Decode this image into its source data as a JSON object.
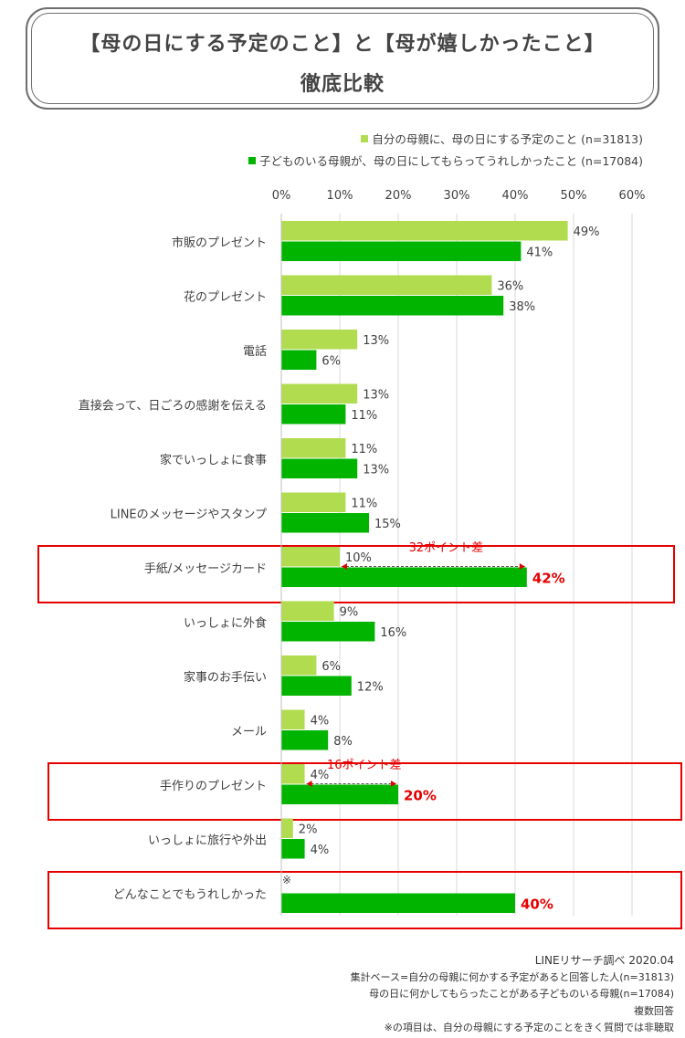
{
  "title": {
    "line1": "【母の日にする予定のこと】と【母が嬉しかったこと】",
    "line2": "徹底比較"
  },
  "colors": {
    "series1": "#b2dc50",
    "series2": "#00b400",
    "highlight": "#e60000"
  },
  "chart_data": {
    "type": "bar",
    "orientation": "horizontal",
    "categories": [
      "市販のプレゼント",
      "花のプレゼント",
      "電話",
      "直接会って、日ごろの感謝を伝える",
      "家でいっしょに食事",
      "LINEのメッセージやスタンプ",
      "手紙/メッセージカード",
      "いっしょに外食",
      "家事のお手伝い",
      "メール",
      "手作りのプレゼント",
      "いっしょに旅行や外出",
      "どんなことでもうれしかった"
    ],
    "series": [
      {
        "name": "自分の母親に、母の日にする予定のこと (n=31813)",
        "values": [
          49,
          36,
          13,
          13,
          11,
          11,
          10,
          9,
          6,
          4,
          4,
          2,
          null
        ],
        "labels": [
          "49%",
          "36%",
          "13%",
          "13%",
          "11%",
          "11%",
          "10%",
          "9%",
          "6%",
          "4%",
          "4%",
          "2%",
          "※"
        ]
      },
      {
        "name": "子どものいる母親が、母の日にしてもらってうれしかったこと (n=17084)",
        "values": [
          41,
          38,
          6,
          11,
          13,
          15,
          42,
          16,
          12,
          8,
          20,
          4,
          40
        ],
        "labels": [
          "41%",
          "38%",
          "6%",
          "11%",
          "13%",
          "15%",
          "42%",
          "16%",
          "12%",
          "8%",
          "20%",
          "4%",
          "40%"
        ]
      }
    ],
    "xlim": [
      0,
      60
    ],
    "ticks": [
      "0%",
      "10%",
      "20%",
      "30%",
      "40%",
      "50%",
      "60%"
    ],
    "highlighted_categories": [
      6,
      10,
      12
    ],
    "annotations": [
      {
        "category": 6,
        "text": "32ポイント差"
      },
      {
        "category": 10,
        "text": "16ポイント差"
      }
    ],
    "legend_position": "top-right"
  },
  "footer": {
    "source": "LINEリサーチ調べ 2020.04",
    "base1": "集計ベース=自分の母親に何かする予定があると回答した人(n=31813)",
    "base2": "母の日に何かしてもらったことがある子どものいる母親(n=17084)",
    "multi": "複数回答",
    "note": "※の項目は、自分の母親にする予定のことをきく質問では非聴取"
  }
}
